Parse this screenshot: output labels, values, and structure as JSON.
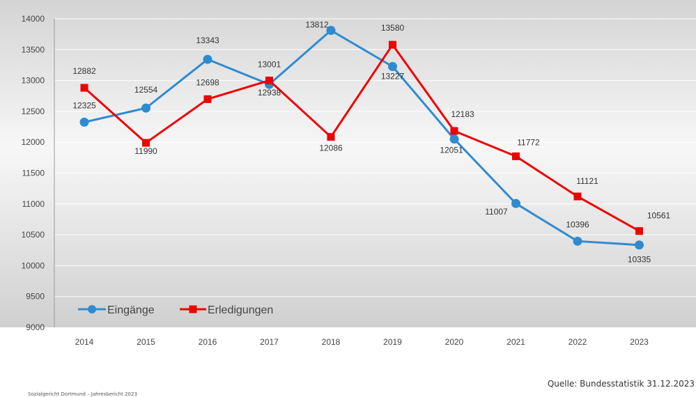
{
  "chart_data": {
    "type": "line",
    "categories": [
      "2014",
      "2015",
      "2016",
      "2017",
      "2018",
      "2019",
      "2020",
      "2021",
      "2022",
      "2023"
    ],
    "series": [
      {
        "name": "Eingänge",
        "color": "#2E8BD0",
        "marker": "circle",
        "values": [
          12325,
          12554,
          13343,
          12938,
          13812,
          13227,
          12051,
          11007,
          10396,
          10335
        ]
      },
      {
        "name": "Erledigungen",
        "color": "#EE0000",
        "marker": "square",
        "values": [
          12882,
          11990,
          12698,
          13001,
          12086,
          13580,
          12183,
          11772,
          11121,
          10561
        ]
      }
    ],
    "ylim": [
      9000,
      14000
    ],
    "yticks": [
      9000,
      9500,
      10000,
      10500,
      11000,
      11500,
      12000,
      12500,
      13000,
      13500,
      14000
    ],
    "grid": true,
    "legend_position": "bottom-left"
  },
  "source_text": "Quelle: Bundesstatistik 31.12.2023",
  "footer_text": "Sozialgericht Dortmund – Jahresbericht 2023"
}
